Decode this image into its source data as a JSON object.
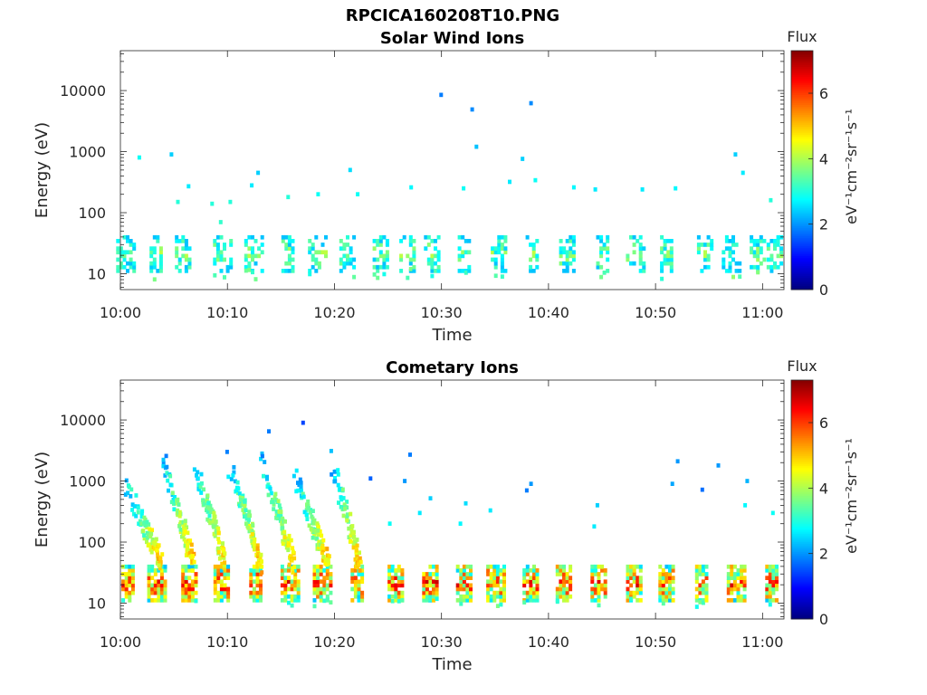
{
  "figure": {
    "title": "RPCICA160208T10.PNG"
  },
  "chart_data": [
    {
      "type": "heatmap",
      "title": "Solar Wind Ions",
      "xlabel": "Time",
      "ylabel": "Energy (eV)",
      "x_ticks": [
        "10:00",
        "10:10",
        "10:20",
        "10:30",
        "10:40",
        "10:50",
        "11:00"
      ],
      "x_range_minutes": [
        0,
        62
      ],
      "y_scale": "log",
      "y_ticks": [
        10,
        100,
        1000,
        10000
      ],
      "y_tick_labels": [
        "10",
        "100",
        "1000",
        "10000"
      ],
      "y_range": [
        5.5,
        45000
      ],
      "colorbar": {
        "label": "Flux",
        "units": "eV⁻¹cm⁻²sr⁻¹s⁻¹",
        "range": [
          0,
          7.3
        ],
        "ticks": [
          0,
          2,
          4,
          6
        ],
        "colormap": "jet"
      },
      "bursts_minutes": [
        0.4,
        3.2,
        5.8,
        9.5,
        12.4,
        15.5,
        18.3,
        21.2,
        24.3,
        26.8,
        29.0,
        32.0,
        35.3,
        38.4,
        41.6,
        45.0,
        48.0,
        51.0,
        54.5,
        57.0,
        59.5,
        61.0
      ],
      "sparse_points": [
        {
          "t": 1.6,
          "e": 800,
          "v": 2.8
        },
        {
          "t": 4.6,
          "e": 900,
          "v": 2.4
        },
        {
          "t": 5.2,
          "e": 150,
          "v": 3.0
        },
        {
          "t": 6.2,
          "e": 270,
          "v": 2.6
        },
        {
          "t": 8.4,
          "e": 140,
          "v": 3.0
        },
        {
          "t": 9.2,
          "e": 70,
          "v": 3.1
        },
        {
          "t": 10.1,
          "e": 150,
          "v": 3.0
        },
        {
          "t": 12.7,
          "e": 450,
          "v": 2.4
        },
        {
          "t": 12.1,
          "e": 280,
          "v": 2.6
        },
        {
          "t": 15.5,
          "e": 180,
          "v": 3.0
        },
        {
          "t": 18.3,
          "e": 200,
          "v": 2.8
        },
        {
          "t": 21.3,
          "e": 500,
          "v": 2.5
        },
        {
          "t": 22.0,
          "e": 200,
          "v": 2.8
        },
        {
          "t": 27.0,
          "e": 260,
          "v": 2.7
        },
        {
          "t": 29.8,
          "e": 8500,
          "v": 1.8
        },
        {
          "t": 32.7,
          "e": 4900,
          "v": 1.9
        },
        {
          "t": 33.1,
          "e": 1200,
          "v": 2.3
        },
        {
          "t": 31.9,
          "e": 250,
          "v": 2.8
        },
        {
          "t": 36.2,
          "e": 320,
          "v": 2.6
        },
        {
          "t": 37.4,
          "e": 760,
          "v": 2.4
        },
        {
          "t": 38.2,
          "e": 6200,
          "v": 1.9
        },
        {
          "t": 38.6,
          "e": 340,
          "v": 2.8
        },
        {
          "t": 42.2,
          "e": 260,
          "v": 2.7
        },
        {
          "t": 44.2,
          "e": 240,
          "v": 2.6
        },
        {
          "t": 48.6,
          "e": 240,
          "v": 2.6
        },
        {
          "t": 51.7,
          "e": 250,
          "v": 2.7
        },
        {
          "t": 57.3,
          "e": 900,
          "v": 2.4
        },
        {
          "t": 58.0,
          "e": 450,
          "v": 2.6
        },
        {
          "t": 60.6,
          "e": 160,
          "v": 3.0
        }
      ]
    },
    {
      "type": "heatmap",
      "title": "Cometary Ions",
      "xlabel": "Time",
      "ylabel": "Energy (eV)",
      "x_ticks": [
        "10:00",
        "10:10",
        "10:20",
        "10:30",
        "10:40",
        "10:50",
        "11:00"
      ],
      "x_range_minutes": [
        0,
        62
      ],
      "y_scale": "log",
      "y_ticks": [
        10,
        100,
        1000,
        10000
      ],
      "y_tick_labels": [
        "10",
        "100",
        "1000",
        "10000"
      ],
      "y_range": [
        5.5,
        45000
      ],
      "colorbar": {
        "label": "Flux",
        "units": "eV⁻¹cm⁻²sr⁻¹s⁻¹",
        "range": [
          0,
          7.3
        ],
        "ticks": [
          0,
          2,
          4,
          6
        ],
        "colormap": "jet"
      },
      "bursts_minutes": [
        0.6,
        3.3,
        6.4,
        9.4,
        12.6,
        15.8,
        18.8,
        22.0,
        25.6,
        28.8,
        32.0,
        35.0,
        38.3,
        41.4,
        44.6,
        47.9,
        51.0,
        54.2,
        57.5,
        60.8
      ],
      "dispersion_arcs": [
        {
          "t_start": 0.3,
          "t_end": 3.6,
          "e_start": 800,
          "e_end": 40
        },
        {
          "t_start": 3.8,
          "t_end": 6.6,
          "e_start": 2000,
          "e_end": 40
        },
        {
          "t_start": 6.7,
          "t_end": 9.6,
          "e_start": 1800,
          "e_end": 40
        },
        {
          "t_start": 9.8,
          "t_end": 12.9,
          "e_start": 2000,
          "e_end": 40
        },
        {
          "t_start": 13.0,
          "t_end": 16.0,
          "e_start": 1800,
          "e_end": 40
        },
        {
          "t_start": 16.2,
          "t_end": 19.2,
          "e_start": 900,
          "e_end": 40
        },
        {
          "t_start": 19.5,
          "t_end": 22.2,
          "e_start": 1800,
          "e_end": 40
        }
      ],
      "sparse_points": [
        {
          "t": 16.9,
          "e": 9000,
          "v": 1.4
        },
        {
          "t": 13.7,
          "e": 6500,
          "v": 1.8
        },
        {
          "t": 26.9,
          "e": 2700,
          "v": 1.8
        },
        {
          "t": 23.2,
          "e": 1100,
          "v": 1.6
        },
        {
          "t": 26.4,
          "e": 1000,
          "v": 2.0
        },
        {
          "t": 38.2,
          "e": 900,
          "v": 2.0
        },
        {
          "t": 37.8,
          "e": 700,
          "v": 1.8
        },
        {
          "t": 51.9,
          "e": 2100,
          "v": 2.0
        },
        {
          "t": 55.7,
          "e": 1800,
          "v": 2.0
        },
        {
          "t": 54.2,
          "e": 720,
          "v": 1.7
        },
        {
          "t": 51.4,
          "e": 900,
          "v": 2.1
        },
        {
          "t": 58.4,
          "e": 1000,
          "v": 2.2
        },
        {
          "t": 28.8,
          "e": 520,
          "v": 2.4
        },
        {
          "t": 32.1,
          "e": 430,
          "v": 2.5
        },
        {
          "t": 44.4,
          "e": 400,
          "v": 2.4
        },
        {
          "t": 44.1,
          "e": 180,
          "v": 2.6
        },
        {
          "t": 27.8,
          "e": 300,
          "v": 2.6
        },
        {
          "t": 25.0,
          "e": 200,
          "v": 2.8
        },
        {
          "t": 31.6,
          "e": 200,
          "v": 2.7
        },
        {
          "t": 34.4,
          "e": 330,
          "v": 2.6
        },
        {
          "t": 58.2,
          "e": 400,
          "v": 2.7
        },
        {
          "t": 60.8,
          "e": 300,
          "v": 2.8
        }
      ]
    }
  ]
}
